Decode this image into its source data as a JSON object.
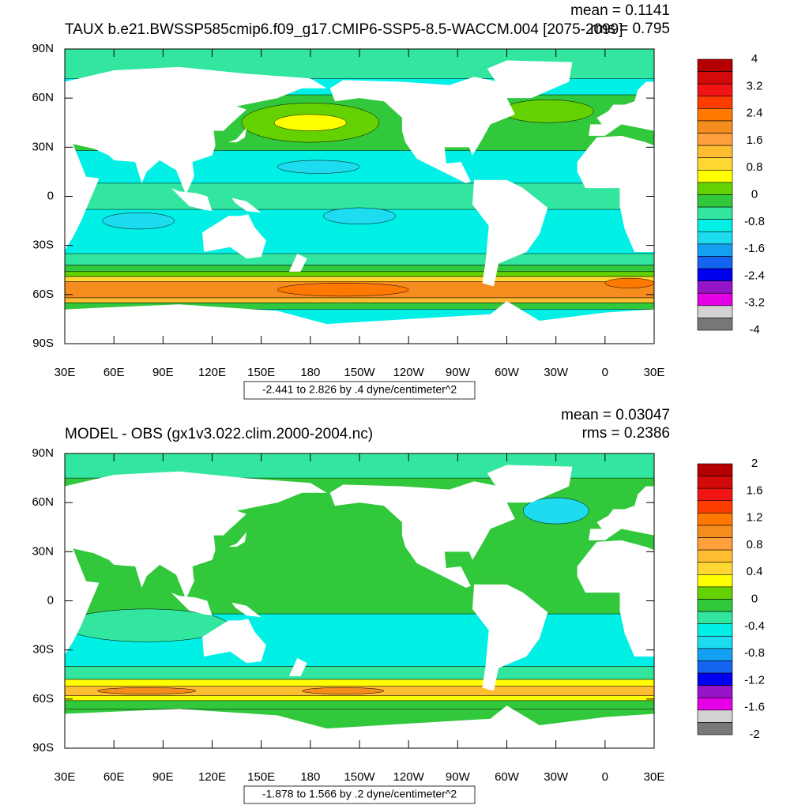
{
  "panels": [
    {
      "title": "TAUX b.e21.BWSSP585cmip6.f09_g17.CMIP6-SSP5-8.5-WACCM.004 [2075-2099]",
      "mean": "mean = 0.1141",
      "rms": "rms = 0.795",
      "info": "-2.441 to 2.826 by .4 dyne/centimeter^2",
      "xlim": [
        30,
        390
      ],
      "ylim": [
        -90,
        90
      ],
      "xticks": [
        {
          "value": 30,
          "label": "30E"
        },
        {
          "value": 60,
          "label": "60E"
        },
        {
          "value": 90,
          "label": "90E"
        },
        {
          "value": 120,
          "label": "120E"
        },
        {
          "value": 150,
          "label": "150E"
        },
        {
          "value": 180,
          "label": "180"
        },
        {
          "value": 210,
          "label": "150W"
        },
        {
          "value": 240,
          "label": "120W"
        },
        {
          "value": 270,
          "label": "90W"
        },
        {
          "value": 300,
          "label": "60W"
        },
        {
          "value": 330,
          "label": "30W"
        },
        {
          "value": 360,
          "label": "0"
        },
        {
          "value": 390,
          "label": "30E"
        }
      ],
      "yticks": [
        {
          "value": 90,
          "label": "90N"
        },
        {
          "value": 60,
          "label": "60N"
        },
        {
          "value": 30,
          "label": "30N"
        },
        {
          "value": 0,
          "label": "0"
        },
        {
          "value": -30,
          "label": "30S"
        },
        {
          "value": -60,
          "label": "60S"
        },
        {
          "value": -90,
          "label": "90S"
        }
      ],
      "colorbar": {
        "labels": [
          4,
          3.2,
          2.4,
          1.6,
          0.8,
          0,
          -0.8,
          -1.6,
          -2.4,
          -3.2,
          -4
        ],
        "colors": [
          "#b40000",
          "#d20a0a",
          "#f01414",
          "#ff3c00",
          "#ff7800",
          "#f58c1e",
          "#ffa03c",
          "#ffbe32",
          "#ffd732",
          "#ffff00",
          "#64d200",
          "#32c83c",
          "#32e6a0",
          "#00f0e6",
          "#1edcf0",
          "#14a0f0",
          "#1464f0",
          "#0000f0",
          "#9614c8",
          "#e600e6",
          "#d2d2d2",
          "#787878"
        ]
      }
    },
    {
      "title": "MODEL - OBS (gx1v3.022.clim.2000-2004.nc)",
      "mean": "mean = 0.03047",
      "rms": "rms = 0.2386",
      "info": "-1.878 to 1.566 by .2 dyne/centimeter^2",
      "xlim": [
        30,
        390
      ],
      "ylim": [
        -90,
        90
      ],
      "xticks": [
        {
          "value": 30,
          "label": "30E"
        },
        {
          "value": 60,
          "label": "60E"
        },
        {
          "value": 90,
          "label": "90E"
        },
        {
          "value": 120,
          "label": "120E"
        },
        {
          "value": 150,
          "label": "150E"
        },
        {
          "value": 180,
          "label": "180"
        },
        {
          "value": 210,
          "label": "150W"
        },
        {
          "value": 240,
          "label": "120W"
        },
        {
          "value": 270,
          "label": "90W"
        },
        {
          "value": 300,
          "label": "60W"
        },
        {
          "value": 330,
          "label": "30W"
        },
        {
          "value": 360,
          "label": "0"
        },
        {
          "value": 390,
          "label": "30E"
        }
      ],
      "yticks": [
        {
          "value": 90,
          "label": "90N"
        },
        {
          "value": 60,
          "label": "60N"
        },
        {
          "value": 30,
          "label": "30N"
        },
        {
          "value": 0,
          "label": "0"
        },
        {
          "value": -30,
          "label": "30S"
        },
        {
          "value": -60,
          "label": "60S"
        },
        {
          "value": -90,
          "label": "90S"
        }
      ],
      "colorbar": {
        "labels": [
          2,
          1.6,
          1.2,
          0.8,
          0.4,
          0,
          -0.4,
          -0.8,
          -1.2,
          -1.6,
          -2
        ],
        "colors": [
          "#b40000",
          "#d20a0a",
          "#f01414",
          "#ff3c00",
          "#ff7800",
          "#f58c1e",
          "#ffa03c",
          "#ffbe32",
          "#ffd732",
          "#ffff00",
          "#64d200",
          "#32c83c",
          "#32e6a0",
          "#00f0e6",
          "#1edcf0",
          "#14a0f0",
          "#1464f0",
          "#0000f0",
          "#9614c8",
          "#e600e6",
          "#d2d2d2",
          "#787878"
        ]
      }
    }
  ]
}
